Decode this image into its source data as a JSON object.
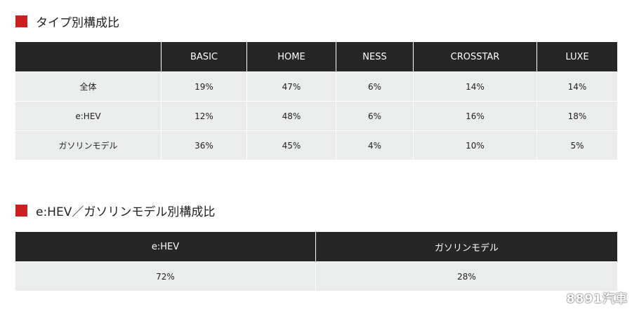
{
  "section_type": {
    "title": "タイプ別構成比",
    "headers": [
      "",
      "BASIC",
      "HOME",
      "NESS",
      "CROSSTAR",
      "LUXE"
    ],
    "rows": [
      {
        "label": "全体",
        "values": [
          "19%",
          "47%",
          "6%",
          "14%",
          "14%"
        ]
      },
      {
        "label": "e:HEV",
        "values": [
          "12%",
          "48%",
          "6%",
          "16%",
          "18%"
        ]
      },
      {
        "label": "ガソリンモデル",
        "values": [
          "36%",
          "45%",
          "4%",
          "10%",
          "5%"
        ]
      }
    ]
  },
  "section_power": {
    "title": "e:HEV／ガソリンモデル別構成比",
    "headers": [
      "e:HEV",
      "ガソリンモデル"
    ],
    "values": [
      "72%",
      "28%"
    ]
  },
  "watermark": "8891汽車",
  "colors": {
    "accent": "#cc1f1f",
    "header_bg": "#262626",
    "cell_bg": "#ebeded"
  }
}
